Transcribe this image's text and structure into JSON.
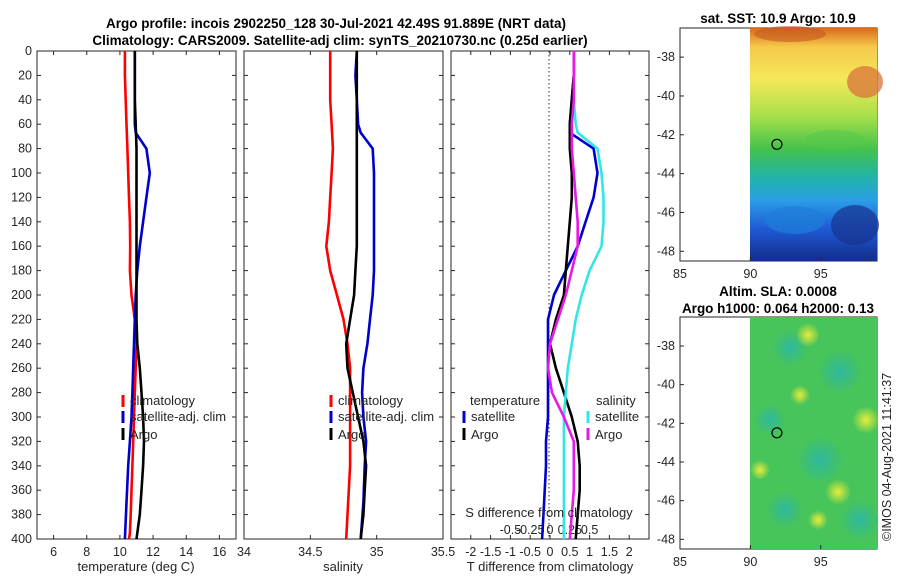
{
  "titles": {
    "line1": "Argo profile: incois 2902250_128 30-Jul-2021 42.49S 91.889E (NRT data)",
    "line2": "Climatology: CARS2009. Satellite-adj clim: synTS_20210730.nc (0.25d earlier)"
  },
  "copyright": "©IMOS 04-Aug-2021 11:41:37",
  "colors": {
    "clim": "#ff0000",
    "sat": "#0000cc",
    "argo": "#000000",
    "sal_sat": "#33e6e6",
    "sal_argo": "#e619e6"
  },
  "chart_data": [
    {
      "type": "line",
      "id": "temperature",
      "xlabel": "temperature (deg C)",
      "ylabel": "",
      "xlim": [
        5,
        17
      ],
      "ylim": [
        0,
        400
      ],
      "y_reversed": true,
      "xticks": [
        "6",
        "8",
        "10",
        "12",
        "14",
        "16"
      ],
      "yticks": [
        "0",
        "20",
        "40",
        "60",
        "80",
        "100",
        "120",
        "140",
        "160",
        "180",
        "200",
        "220",
        "240",
        "260",
        "280",
        "300",
        "320",
        "340",
        "360",
        "380",
        "400"
      ],
      "legend": {
        "position": "lower-middle",
        "entries": [
          "climatology",
          "satellite-adj. clim",
          "Argo"
        ]
      },
      "series": [
        {
          "name": "climatology",
          "color": "#ff0000",
          "x": [
            10.3,
            10.3,
            10.35,
            10.4,
            10.45,
            10.5,
            10.55,
            10.6,
            10.62,
            10.6,
            10.7,
            10.9,
            11.0,
            10.95,
            10.9,
            10.85,
            10.8,
            10.75,
            10.7,
            10.65,
            10.6,
            10.55
          ],
          "y": [
            0,
            20,
            40,
            60,
            80,
            100,
            120,
            140,
            160,
            180,
            200,
            220,
            240,
            260,
            280,
            300,
            320,
            340,
            360,
            380,
            395,
            400
          ]
        },
        {
          "name": "satellite-adj. clim",
          "color": "#0000cc",
          "x": [
            10.9,
            10.9,
            10.9,
            10.9,
            10.95,
            11.6,
            11.8,
            11.6,
            11.4,
            11.2,
            11.05,
            10.95,
            10.9,
            10.85,
            10.8,
            10.75,
            10.7,
            10.6,
            10.5,
            10.4,
            10.3
          ],
          "y": [
            0,
            20,
            40,
            60,
            67,
            80,
            100,
            120,
            140,
            160,
            180,
            200,
            220,
            240,
            260,
            280,
            300,
            320,
            340,
            370,
            400
          ]
        },
        {
          "name": "Argo",
          "color": "#000000",
          "x": [
            10.9,
            10.9,
            10.9,
            10.95,
            11.0,
            11.0,
            11.0,
            11.0,
            11.0,
            11.0,
            11.0,
            11.0,
            11.05,
            11.2,
            11.3,
            11.4,
            11.45,
            11.4,
            11.3,
            11.2,
            11.0
          ],
          "y": [
            0,
            20,
            40,
            60,
            80,
            100,
            120,
            140,
            160,
            180,
            200,
            220,
            240,
            260,
            280,
            300,
            320,
            340,
            360,
            380,
            400
          ]
        }
      ]
    },
    {
      "type": "line",
      "id": "salinity",
      "xlabel": "salinity",
      "xlim": [
        34,
        35.5
      ],
      "ylim": [
        0,
        400
      ],
      "y_reversed": true,
      "xticks": [
        "34",
        "34.5",
        "35",
        "35.5"
      ],
      "legend": {
        "position": "lower-middle",
        "entries": [
          "climatology",
          "satellite-adj. clim",
          "Argo"
        ]
      },
      "series": [
        {
          "name": "climatology",
          "color": "#ff0000",
          "x": [
            34.65,
            34.65,
            34.65,
            34.66,
            34.67,
            34.66,
            34.65,
            34.64,
            34.62,
            34.65,
            34.7,
            34.75,
            34.78,
            34.8,
            34.8,
            34.8,
            34.8,
            34.8,
            34.79,
            34.78,
            34.77
          ],
          "y": [
            0,
            20,
            40,
            60,
            80,
            100,
            120,
            140,
            160,
            180,
            200,
            220,
            240,
            260,
            280,
            300,
            320,
            340,
            360,
            380,
            400
          ]
        },
        {
          "name": "satellite-adj. clim",
          "color": "#0000cc",
          "x": [
            34.85,
            34.84,
            34.85,
            34.86,
            34.88,
            34.97,
            34.98,
            34.98,
            34.98,
            34.98,
            34.98,
            34.97,
            34.95,
            34.93,
            34.9,
            34.89,
            34.9,
            34.92,
            34.91,
            34.9,
            34.88
          ],
          "y": [
            0,
            20,
            40,
            60,
            67,
            80,
            100,
            120,
            140,
            160,
            180,
            200,
            220,
            240,
            260,
            280,
            300,
            320,
            340,
            370,
            400
          ]
        },
        {
          "name": "Argo",
          "color": "#000000",
          "x": [
            34.85,
            34.85,
            34.85,
            34.85,
            34.85,
            34.85,
            34.85,
            34.85,
            34.85,
            34.84,
            34.83,
            34.8,
            34.77,
            34.78,
            34.82,
            34.86,
            34.9,
            34.92,
            34.91,
            34.9,
            34.88
          ],
          "y": [
            0,
            20,
            40,
            60,
            80,
            100,
            120,
            140,
            160,
            180,
            200,
            220,
            240,
            260,
            280,
            300,
            320,
            340,
            360,
            380,
            400
          ]
        }
      ]
    },
    {
      "type": "line",
      "id": "differences",
      "xlabel": "T difference from climatology",
      "top_axis_label": "S difference from climatology",
      "xlim": [
        -2.5,
        2.5
      ],
      "ylim": [
        0,
        400
      ],
      "y_reversed": true,
      "xticks": [
        "-2",
        "-1.5",
        "-1",
        "-0.5",
        "0",
        "0.5",
        "1",
        "1.5",
        "2"
      ],
      "top_xticks": [
        "-0.5",
        "-0.25",
        "0",
        "0.25",
        "0.5"
      ],
      "legend": {
        "position": "lower-middle",
        "groups": [
          {
            "title": "temperature",
            "entries": [
              "satellite",
              "Argo"
            ]
          },
          {
            "title": "salinity",
            "entries": [
              "satellite",
              "Argo"
            ]
          }
        ]
      },
      "series": [
        {
          "name": "temperature satellite",
          "color": "#0000cc",
          "x": [
            0.6,
            0.6,
            0.55,
            0.5,
            0.5,
            1.1,
            1.2,
            1.1,
            0.9,
            0.7,
            0.4,
            0.1,
            -0.05,
            -0.05,
            -0.05,
            -0.05,
            -0.05,
            -0.1,
            -0.1,
            -0.15,
            -0.2
          ],
          "y": [
            0,
            20,
            40,
            60,
            67,
            80,
            100,
            120,
            140,
            160,
            180,
            200,
            220,
            240,
            260,
            280,
            300,
            320,
            340,
            370,
            400
          ]
        },
        {
          "name": "temperature Argo",
          "color": "#000000",
          "x": [
            0.6,
            0.6,
            0.55,
            0.5,
            0.5,
            0.55,
            0.55,
            0.5,
            0.45,
            0.4,
            0.35,
            0.15,
            0.0,
            0.15,
            0.35,
            0.55,
            0.7,
            0.75,
            0.75,
            0.7,
            0.65
          ],
          "y": [
            0,
            20,
            40,
            60,
            80,
            100,
            120,
            140,
            160,
            180,
            200,
            220,
            240,
            260,
            280,
            300,
            320,
            340,
            360,
            380,
            400
          ]
        },
        {
          "name": "salinity satellite",
          "color": "#33e6e6",
          "x": [
            0.6,
            0.6,
            0.6,
            0.65,
            0.7,
            1.2,
            1.3,
            1.35,
            1.35,
            1.3,
            1.0,
            0.8,
            0.65,
            0.55,
            0.45,
            0.4,
            0.35,
            0.35,
            0.35,
            0.35,
            0.35
          ],
          "y": [
            0,
            20,
            40,
            60,
            67,
            80,
            100,
            120,
            140,
            160,
            180,
            200,
            220,
            240,
            260,
            280,
            300,
            320,
            340,
            370,
            400
          ]
        },
        {
          "name": "salinity Argo",
          "color": "#e619e6",
          "x": [
            0.6,
            0.6,
            0.6,
            0.55,
            0.55,
            0.6,
            0.65,
            0.7,
            0.7,
            0.55,
            0.4,
            0.2,
            0.0,
            -0.05,
            0.05,
            0.35,
            0.6,
            0.6,
            0.6,
            0.55,
            0.5
          ],
          "y": [
            0,
            20,
            40,
            60,
            80,
            100,
            120,
            140,
            160,
            180,
            200,
            220,
            240,
            260,
            280,
            300,
            320,
            340,
            360,
            380,
            400
          ]
        }
      ]
    },
    {
      "type": "heatmap",
      "id": "sst_map",
      "title": "sat. SST: 10.9 Argo: 10.9",
      "xlim": [
        85,
        99
      ],
      "ylim": [
        -48.5,
        -36.5
      ],
      "xticks": [
        "85",
        "90",
        "95"
      ],
      "yticks": [
        "-38",
        "-40",
        "-42",
        "-44",
        "-46",
        "-48"
      ],
      "argo_position": [
        91.889,
        -42.49
      ]
    },
    {
      "type": "heatmap",
      "id": "sla_map",
      "title1": "Altim. SLA: 0.0008",
      "title2": "Argo h1000: 0.064 h2000: 0.13",
      "xlim": [
        85,
        99
      ],
      "ylim": [
        -48.5,
        -36.5
      ],
      "xticks": [
        "85",
        "90",
        "95"
      ],
      "yticks": [
        "-38",
        "-40",
        "-42",
        "-44",
        "-46",
        "-48"
      ],
      "argo_position": [
        91.889,
        -42.49
      ]
    }
  ]
}
